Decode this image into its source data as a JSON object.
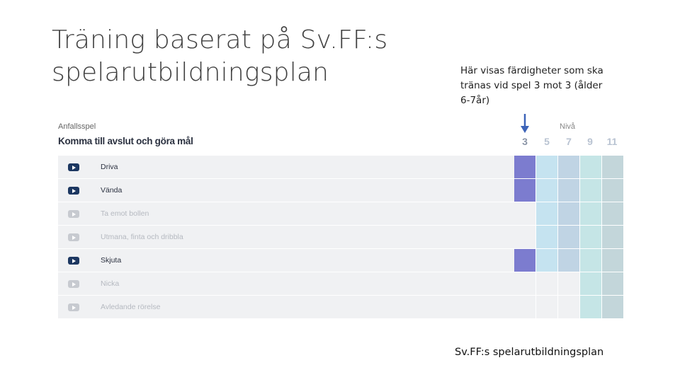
{
  "slide": {
    "title": "Träning baserat på Sv.FF:s spelarutbildningsplan",
    "description": "Här visas färdigheter som ska tränas vid spel 3 mot 3 (ålder 6-7år)",
    "caption": "Sv.FF:s spelarutbildningsplan"
  },
  "table": {
    "section_label": "Anfallsspel",
    "section_title": "Komma till avslut och göra mål",
    "level_header": "Nivå",
    "levels": [
      "3",
      "5",
      "7",
      "9",
      "11"
    ],
    "highlighted_level": "3",
    "colors": {
      "level_3": "#7c7ccf",
      "level_5": "#c5e3f0",
      "level_7": "#c0d4e4",
      "level_9": "#c5e5e6",
      "level_11": "#c3d6da",
      "empty": "#f0f1f3",
      "arrow": "#3d64b8"
    },
    "rows": [
      {
        "label": "Driva",
        "active": true,
        "levels": [
          "3",
          "5",
          "7",
          "9",
          "11"
        ]
      },
      {
        "label": "Vända",
        "active": true,
        "levels": [
          "3",
          "5",
          "7",
          "9",
          "11"
        ]
      },
      {
        "label": "Ta emot bollen",
        "active": false,
        "levels": [
          "5",
          "7",
          "9",
          "11"
        ]
      },
      {
        "label": "Utmana, finta och dribbla",
        "active": false,
        "levels": [
          "5",
          "7",
          "9",
          "11"
        ]
      },
      {
        "label": "Skjuta",
        "active": true,
        "levels": [
          "3",
          "5",
          "7",
          "9",
          "11"
        ]
      },
      {
        "label": "Nicka",
        "active": false,
        "levels": [
          "9",
          "11"
        ]
      },
      {
        "label": "Avledande rörelse",
        "active": false,
        "levels": [
          "9",
          "11"
        ]
      }
    ]
  }
}
